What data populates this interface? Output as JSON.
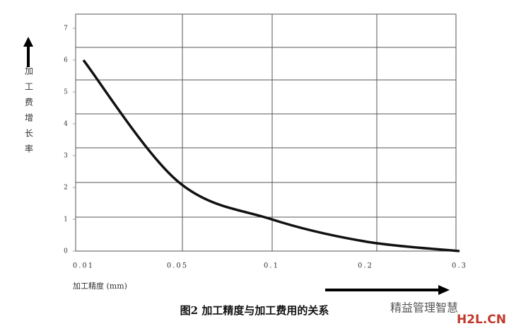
{
  "chart_data": {
    "type": "line",
    "title": "图2 加工精度与加工费用的关系",
    "x_label": "加工精度 (mm)",
    "y_label": "加工费增长率",
    "categories": [
      "0.01",
      "0.05",
      "0.1",
      "0.2",
      "0.3"
    ],
    "values": [
      6,
      2.2,
      1,
      0.3,
      0
    ],
    "color": "#111111",
    "ylim": [
      0,
      7
    ],
    "yticks": [
      0,
      1,
      2,
      3,
      4,
      5,
      6,
      7
    ],
    "watermark": "精益管理智慧",
    "site": "H2L.CN"
  }
}
